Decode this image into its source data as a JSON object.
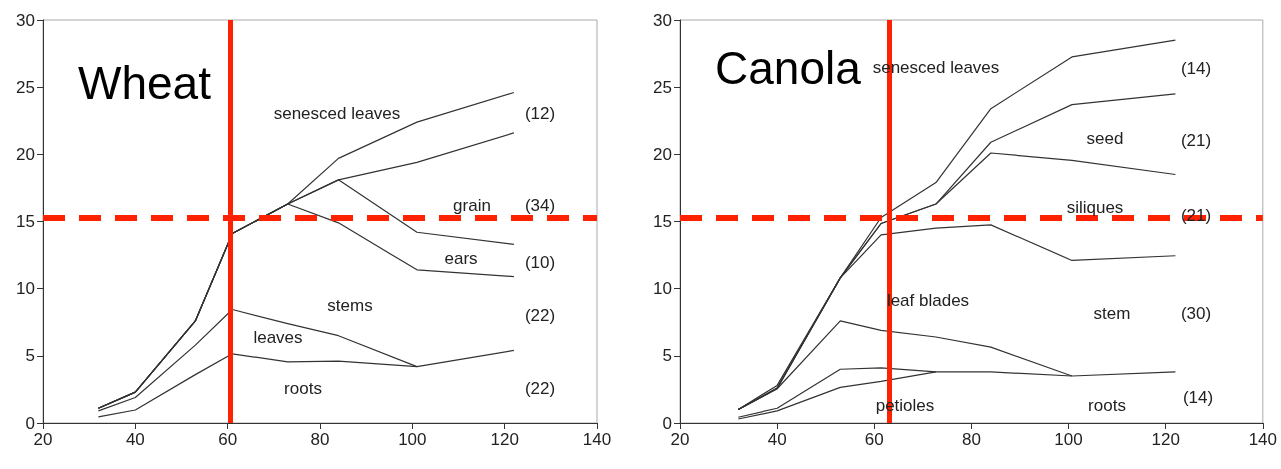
{
  "chart_data": [
    {
      "type": "line",
      "title": "Wheat",
      "x": [
        32,
        40,
        53,
        61,
        73,
        84,
        101,
        122
      ],
      "xlim": [
        20,
        140
      ],
      "xticks": [
        20,
        40,
        60,
        80,
        100,
        120,
        140
      ],
      "ylim": [
        0,
        30
      ],
      "yticks": [
        0,
        5,
        10,
        15,
        20,
        25,
        30
      ],
      "marker": "none",
      "grid": false,
      "series": [
        {
          "color": "#333333",
          "values": [
            0.45,
            0.97,
            3.6,
            5.15,
            4.55,
            4.6,
            4.2,
            5.4
          ]
        },
        {
          "color": "#333333",
          "values": [
            0.9,
            1.9,
            5.8,
            8.45,
            7.4,
            6.5,
            4.2,
            null
          ]
        },
        {
          "color": "#333333",
          "values": [
            1.1,
            2.3,
            7.6,
            14.1,
            16.3,
            14.9,
            11.4,
            10.9
          ]
        },
        {
          "color": "#333333",
          "values": [
            1.1,
            2.3,
            7.6,
            14.1,
            16.3,
            18.1,
            14.2,
            13.3
          ]
        },
        {
          "color": "#333333",
          "values": [
            1.1,
            2.3,
            7.6,
            14.1,
            16.3,
            18.1,
            19.4,
            21.6
          ]
        },
        {
          "color": "#333333",
          "values": [
            1.1,
            2.3,
            7.6,
            14.1,
            16.3,
            19.7,
            22.4,
            24.6
          ]
        }
      ],
      "ref_lines": [
        {
          "axis": "x",
          "value": 60.5,
          "color": "#ff2200",
          "line_style": "solid"
        },
        {
          "axis": "y",
          "value": 15.3,
          "color": "#ff2200",
          "line_style": "dashed"
        }
      ],
      "annotations": [
        "senesced leaves",
        "(12)",
        "grain",
        "(34)",
        "ears",
        "(10)",
        "stems",
        "(22)",
        "leaves",
        "roots",
        "(22)"
      ]
    },
    {
      "type": "line",
      "title": "Canola",
      "x": [
        32,
        40,
        53,
        61.4,
        72.7,
        84,
        100.7,
        122
      ],
      "xlim": [
        20,
        140
      ],
      "xticks": [
        20,
        40,
        60,
        80,
        100,
        120,
        140
      ],
      "ylim": [
        0,
        30
      ],
      "yticks": [
        0,
        5,
        10,
        15,
        20,
        25,
        30
      ],
      "marker": "none",
      "grid": false,
      "series": [
        {
          "color": "#333333",
          "values": [
            0.3,
            0.9,
            2.65,
            3.1,
            3.8,
            3.8,
            3.5,
            3.8
          ]
        },
        {
          "color": "#333333",
          "values": [
            0.43,
            1.1,
            4.0,
            4.1,
            3.8,
            null,
            null,
            null
          ]
        },
        {
          "color": "#333333",
          "values": [
            1.0,
            2.55,
            7.6,
            6.9,
            6.4,
            5.65,
            3.5,
            null
          ]
        },
        {
          "color": "#333333",
          "values": [
            1.0,
            2.55,
            10.8,
            14.0,
            14.5,
            14.75,
            12.1,
            12.45
          ]
        },
        {
          "color": "#333333",
          "values": [
            1.0,
            2.6,
            10.8,
            14.85,
            16.3,
            20.1,
            19.55,
            18.5
          ]
        },
        {
          "color": "#333333",
          "values": [
            1.0,
            2.6,
            10.8,
            14.85,
            16.3,
            20.9,
            23.7,
            24.5
          ]
        },
        {
          "color": "#333333",
          "values": [
            1.0,
            2.8,
            10.8,
            15.3,
            17.9,
            23.4,
            27.25,
            28.5
          ]
        }
      ],
      "ref_lines": [
        {
          "axis": "x",
          "value": 63,
          "color": "#ff2200",
          "line_style": "solid"
        },
        {
          "axis": "y",
          "value": 15.3,
          "color": "#ff2200",
          "line_style": "dashed"
        }
      ],
      "annotations": [
        "senesced leaves",
        "(14)",
        "seed",
        "(21)",
        "siliques",
        "(21)",
        "leaf blades",
        "stem",
        "(30)",
        "petioles",
        "roots",
        "(14)"
      ]
    }
  ]
}
